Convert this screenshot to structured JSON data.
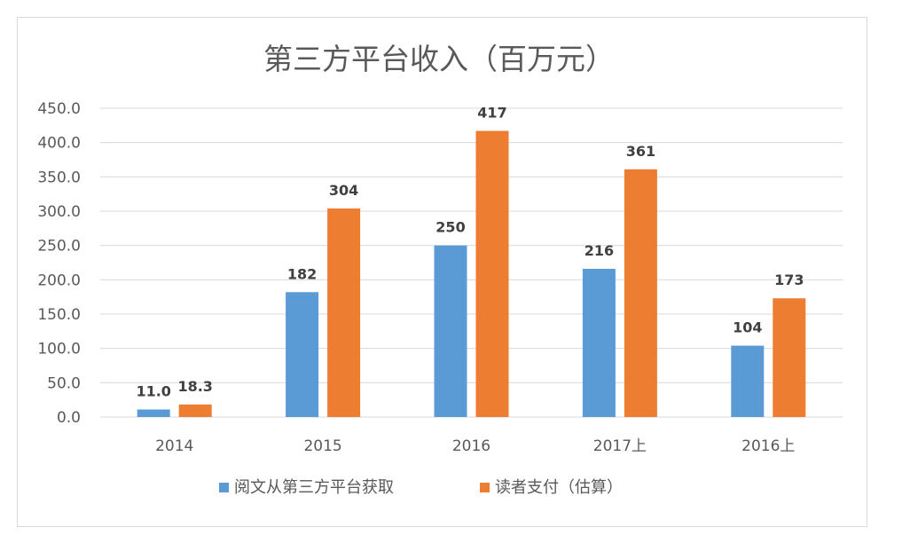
{
  "chart_data": {
    "type": "bar",
    "title": "第三方平台收入（百万元）",
    "categories": [
      "2014",
      "2015",
      "2016",
      "2017上",
      "2016上"
    ],
    "series": [
      {
        "name": "阅文从第三方平台获取",
        "color": "#5b9bd5",
        "values": [
          11.0,
          182,
          250,
          216,
          104
        ],
        "labels": [
          "11.0",
          "182",
          "250",
          "216",
          "104"
        ]
      },
      {
        "name": "读者支付（估算）",
        "color": "#ed7d31",
        "values": [
          18.3,
          304,
          417,
          361,
          173
        ],
        "labels": [
          "18.3",
          "304",
          "417",
          "361",
          "173"
        ]
      }
    ],
    "ylim": [
      0,
      450
    ],
    "yticks": [
      "0.0",
      "50.0",
      "100.0",
      "150.0",
      "200.0",
      "250.0",
      "300.0",
      "350.0",
      "400.0",
      "450.0"
    ],
    "grid": true,
    "legend": "bottom",
    "gridline_color": "#d9d9d9",
    "axis_text_color": "#595959"
  }
}
